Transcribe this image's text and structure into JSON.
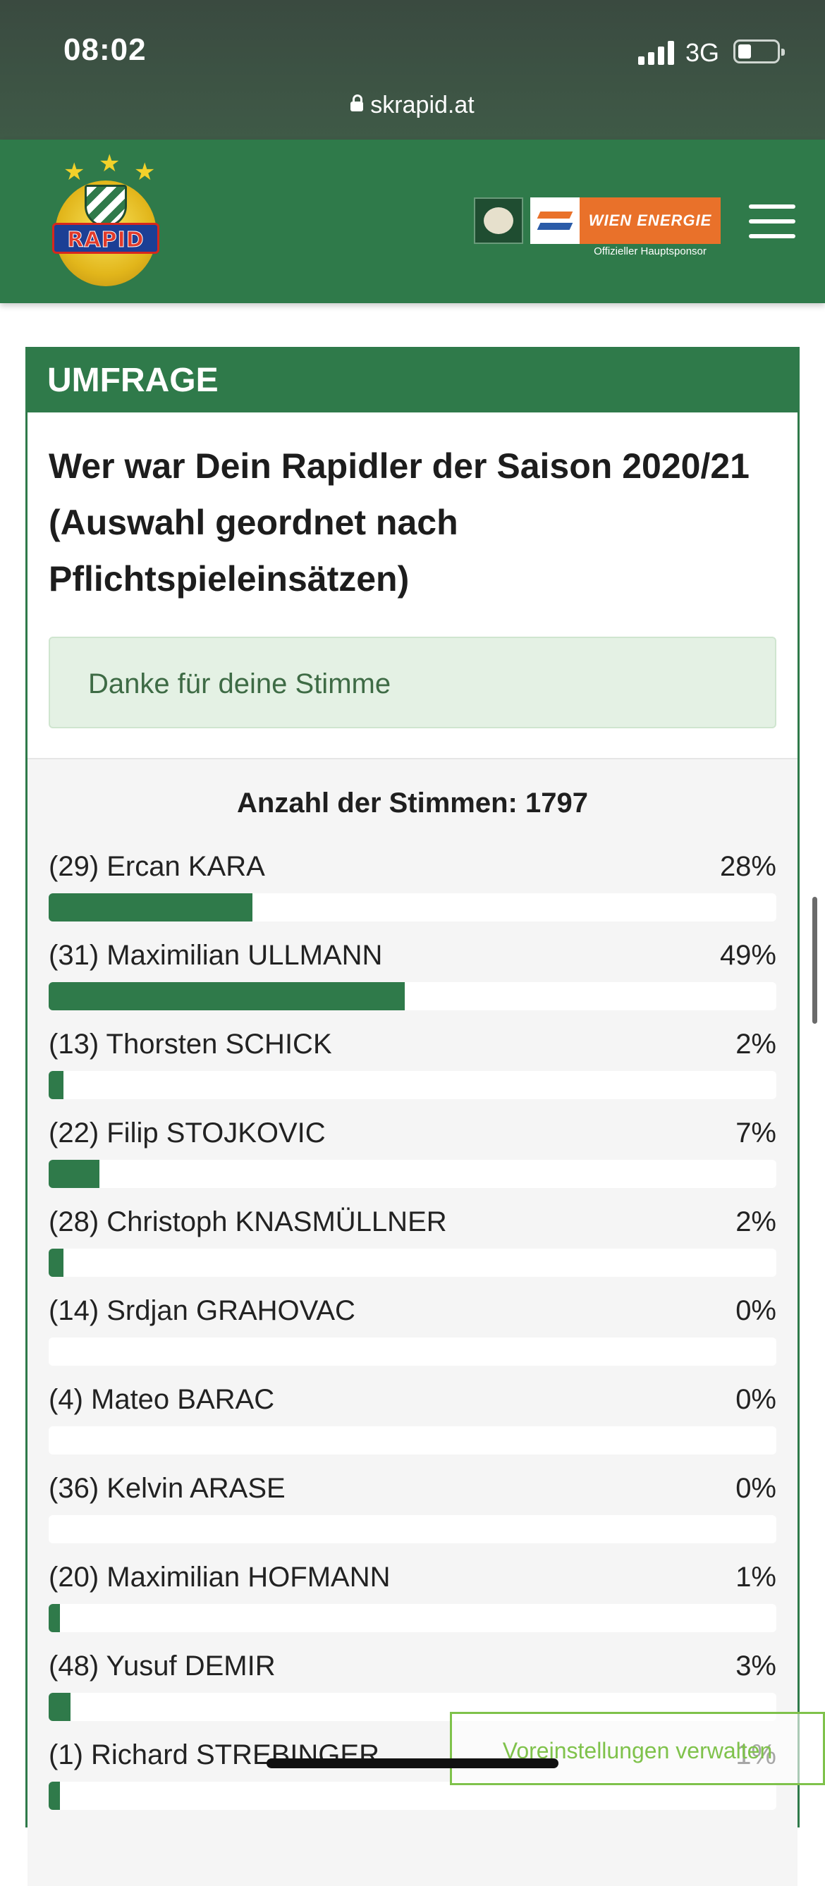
{
  "status_bar": {
    "time": "08:02",
    "network": "3G"
  },
  "browser": {
    "url": "skrapid.at"
  },
  "header": {
    "logo_text": "RAPID",
    "sponsor_name": "WIEN ENERGIE",
    "sponsor_tagline": "Offizieller Hauptsponsor"
  },
  "poll": {
    "heading": "UMFRAGE",
    "question": "Wer war Dein Rapidler der Saison 2020/21 (Auswahl geordnet nach Pflichtspieleinsätzen)",
    "thanks": "Danke für deine Stimme",
    "total_label": "Anzahl der Stimmen: 1797",
    "options": [
      {
        "name": "(29) Ercan KARA",
        "pct_label": "28%",
        "percent": 28
      },
      {
        "name": "(31) Maximilian ULLMANN",
        "pct_label": "49%",
        "percent": 49
      },
      {
        "name": "(13) Thorsten SCHICK",
        "pct_label": "2%",
        "percent": 2
      },
      {
        "name": "(22) Filip STOJKOVIC",
        "pct_label": "7%",
        "percent": 7
      },
      {
        "name": "(28) Christoph KNASMÜLLNER",
        "pct_label": "2%",
        "percent": 2
      },
      {
        "name": "(14) Srdjan GRAHOVAC",
        "pct_label": "0%",
        "percent": 0
      },
      {
        "name": "(4) Mateo BARAC",
        "pct_label": "0%",
        "percent": 0
      },
      {
        "name": "(36) Kelvin ARASE",
        "pct_label": "0%",
        "percent": 0
      },
      {
        "name": "(20) Maximilian HOFMANN",
        "pct_label": "1%",
        "percent": 1
      },
      {
        "name": "(48) Yusuf DEMIR",
        "pct_label": "3%",
        "percent": 3
      },
      {
        "name": "(1) Richard STREBINGER",
        "pct_label": "1%",
        "percent": 1
      }
    ]
  },
  "cookie_banner": {
    "label": "Voreinstellungen verwalten"
  },
  "colors": {
    "brand_green": "#2f7a4a",
    "sponsor_orange": "#e9712a",
    "cookie_green": "#7fc24b"
  }
}
